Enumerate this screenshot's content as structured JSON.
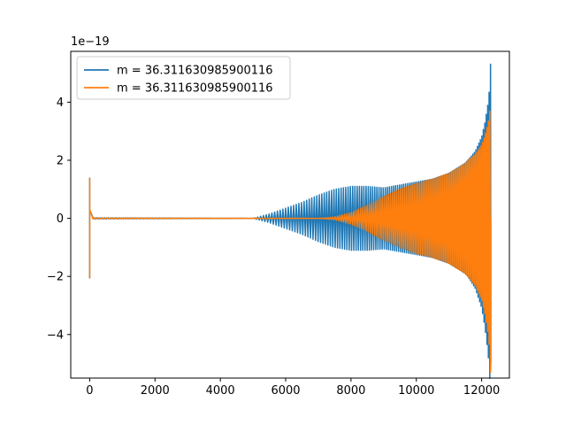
{
  "chart_data": {
    "type": "line",
    "offset_label": "1e−19",
    "xlim": [
      -580,
      12850
    ],
    "ylim": [
      -5.5,
      5.75
    ],
    "x_ticks": [
      0,
      2000,
      4000,
      6000,
      8000,
      10000,
      12000
    ],
    "x_tick_labels": [
      "0",
      "2000",
      "4000",
      "6000",
      "8000",
      "10000",
      "12000"
    ],
    "y_ticks": [
      -4,
      -2,
      0,
      2,
      4
    ],
    "y_tick_labels": [
      "−4",
      "−2",
      "0",
      "2",
      "4"
    ],
    "legend": {
      "placement": "upper-left"
    },
    "series": [
      {
        "name": "m = 36.311630985900116",
        "color": "#1f77b4",
        "x": [
          0,
          100,
          5000,
          5500,
          6000,
          6500,
          7000,
          7500,
          8000,
          8500,
          9000,
          9500,
          10000,
          10500,
          11000,
          11500,
          11800,
          12000,
          12100,
          12200,
          12250,
          12270,
          12280
        ],
        "y": [
          -2.05,
          0.02,
          0.0,
          0.15,
          0.35,
          0.55,
          0.8,
          1.0,
          1.1,
          1.1,
          1.05,
          1.15,
          1.25,
          1.35,
          1.55,
          1.9,
          2.3,
          2.8,
          3.3,
          4.0,
          4.6,
          5.3,
          5.35
        ]
      },
      {
        "name": "m = 36.311630985900116",
        "color": "#ff7f0e",
        "x": [
          0,
          100,
          7000,
          7500,
          8000,
          8500,
          9000,
          9500,
          10000,
          10500,
          11000,
          11500,
          11800,
          12000,
          12100,
          12200,
          12250,
          12270,
          12280
        ],
        "y": [
          -2.05,
          0.02,
          0.0,
          0.05,
          0.2,
          0.45,
          0.75,
          1.0,
          1.2,
          1.35,
          1.55,
          1.9,
          2.3,
          2.8,
          3.3,
          4.0,
          4.6,
          5.3,
          5.35
        ]
      }
    ]
  }
}
